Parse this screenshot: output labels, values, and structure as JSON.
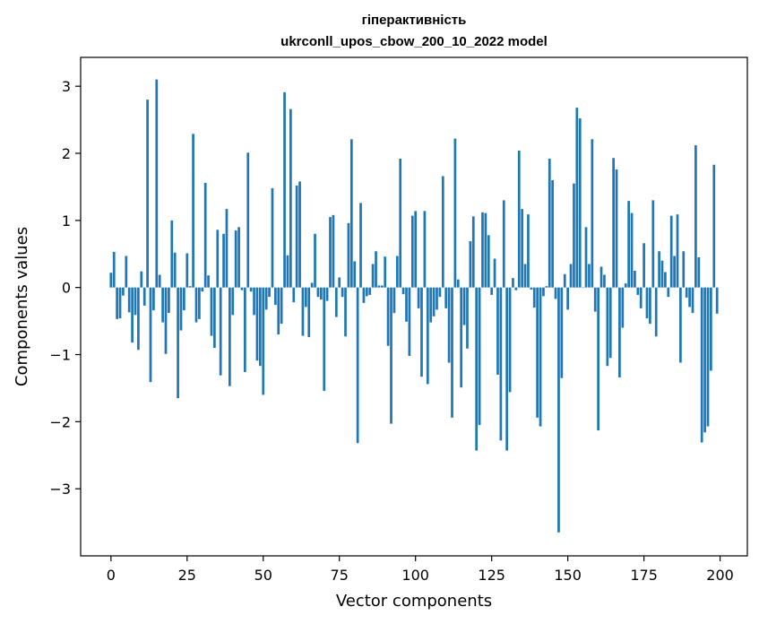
{
  "chart_data": {
    "type": "bar",
    "title": "гіперактивність",
    "subtitle": "ukrconll_upos_cbow_200_10_2022 model",
    "xlabel": "Vector components",
    "ylabel": "Components values",
    "xlim": [
      -9.95,
      208.95
    ],
    "ylim": [
      -4.0,
      3.43
    ],
    "xticks": [
      0,
      25,
      50,
      75,
      100,
      125,
      150,
      175,
      200
    ],
    "xtick_labels": [
      "0",
      "25",
      "50",
      "75",
      "100",
      "125",
      "150",
      "175",
      "200"
    ],
    "yticks": [
      -3,
      -2,
      -1,
      0,
      1,
      2,
      3
    ],
    "ytick_labels": [
      "−3",
      "−2",
      "−1",
      "0",
      "1",
      "2",
      "3"
    ],
    "grid": false,
    "bar_color": "#1f77b4",
    "values": [
      0.22,
      0.53,
      -0.47,
      -0.46,
      -0.12,
      0.47,
      -0.37,
      -0.82,
      -0.41,
      -0.93,
      0.24,
      -0.27,
      2.8,
      -1.41,
      -0.34,
      3.1,
      0.19,
      -0.52,
      -0.99,
      -0.38,
      1.0,
      0.52,
      -1.65,
      -0.64,
      -0.34,
      0.51,
      0.02,
      2.29,
      -0.52,
      -0.47,
      -0.06,
      1.56,
      0.18,
      -0.72,
      -0.9,
      0.86,
      -1.31,
      0.8,
      1.17,
      -1.47,
      -0.41,
      0.85,
      0.9,
      -0.04,
      -1.26,
      2.01,
      -0.06,
      -0.41,
      -1.09,
      -1.17,
      -1.6,
      -0.33,
      -0.14,
      1.48,
      -0.26,
      -0.7,
      -0.54,
      2.91,
      0.48,
      2.66,
      -0.22,
      1.52,
      1.58,
      -0.72,
      -0.29,
      -0.74,
      0.07,
      0.8,
      -0.14,
      -0.18,
      -1.54,
      -0.2,
      1.05,
      1.08,
      -0.44,
      0.15,
      -0.14,
      -0.73,
      0.96,
      2.21,
      0.39,
      -2.32,
      1.26,
      -0.23,
      -0.13,
      -0.11,
      0.35,
      0.54,
      0.03,
      0.03,
      0.46,
      -0.87,
      -2.03,
      -0.38,
      0.47,
      1.92,
      -0.1,
      -0.51,
      -1.02,
      1.07,
      1.14,
      -0.31,
      -1.33,
      1.14,
      -1.44,
      -0.52,
      -0.43,
      -0.33,
      -0.14,
      1.66,
      -0.31,
      -1.12,
      -1.94,
      2.22,
      0.12,
      -1.49,
      -0.56,
      -0.91,
      0.69,
      1.06,
      -2.43,
      -2.05,
      1.12,
      1.11,
      0.78,
      -0.11,
      0.43,
      -1.3,
      -2.28,
      1.3,
      -2.43,
      -1.56,
      0.14,
      -0.04,
      2.04,
      1.17,
      0.35,
      1.09,
      -0.03,
      -0.3,
      -1.94,
      -2.07,
      -0.13,
      0.02,
      1.92,
      1.6,
      -0.17,
      -3.65,
      -1.35,
      0.2,
      -0.33,
      0.35,
      1.55,
      2.68,
      2.52,
      0.0,
      0.9,
      0.35,
      2.21,
      -0.36,
      -2.13,
      0.31,
      0.19,
      -1.17,
      -1.05,
      1.93,
      1.76,
      -1.34,
      -0.6,
      0.06,
      1.29,
      1.11,
      0.25,
      -0.11,
      -0.31,
      0.66,
      -0.46,
      -0.54,
      1.3,
      -0.73,
      0.54,
      0.4,
      0.23,
      -0.14,
      1.07,
      0.47,
      1.09,
      -1.12,
      0.54,
      -0.15,
      -0.29,
      -0.38,
      2.12,
      0.45,
      -2.31,
      -2.16,
      -2.07,
      -1.24,
      1.83,
      -0.39
    ]
  }
}
